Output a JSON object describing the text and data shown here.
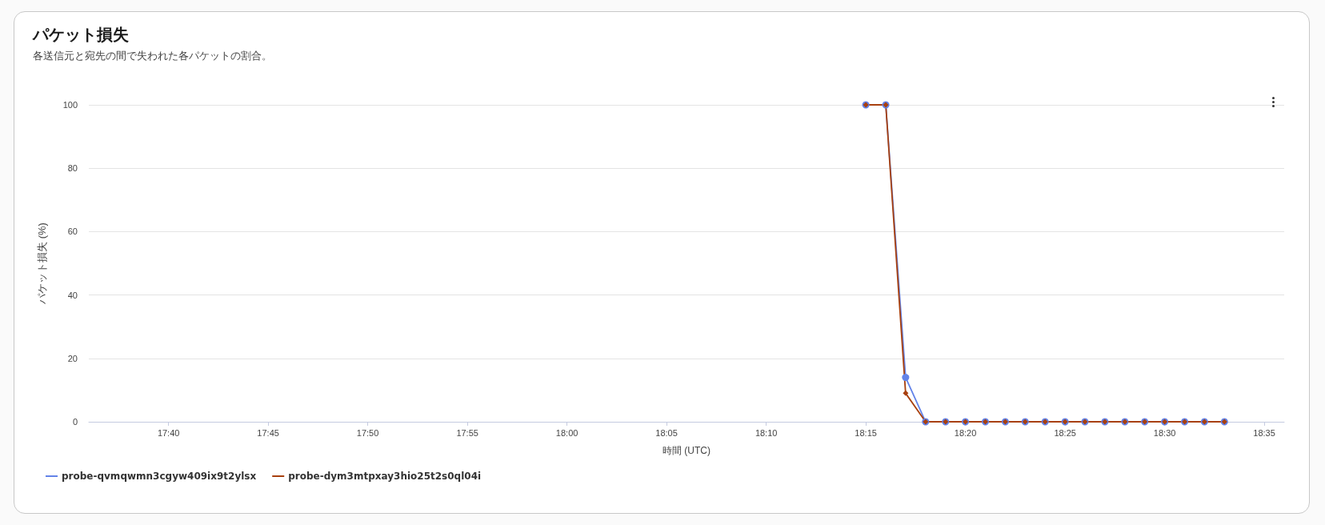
{
  "chart_data": {
    "type": "line",
    "title": "パケット損失",
    "subtitle": "各送信元と宛先の間で失われた各パケットの割合。",
    "xlabel": "時間 (UTC)",
    "ylabel": "パケット損失 (%)",
    "x": [
      18.25,
      18.2667,
      18.2833,
      18.3,
      18.3167,
      18.3333,
      18.35,
      18.3667,
      18.3833,
      18.4,
      18.4167,
      18.4333,
      18.45,
      18.4667,
      18.4833,
      18.5,
      18.5167,
      18.5333,
      18.55
    ],
    "series": [
      {
        "name": "probe-qvmqwmn3cgyw409ix9t2ylsx",
        "color": "#6383e8",
        "marker": "circle",
        "values": [
          100,
          100,
          14,
          0,
          0,
          0,
          0,
          0,
          0,
          0,
          0,
          0,
          0,
          0,
          0,
          0,
          0,
          0,
          0
        ]
      },
      {
        "name": "probe-dym3mtpxay3hio25t2s0ql04i",
        "color": "#a8400f",
        "marker": "diamond",
        "values": [
          100,
          100,
          9,
          0,
          0,
          0,
          0,
          0,
          0,
          0,
          0,
          0,
          0,
          0,
          0,
          0,
          0,
          0,
          0
        ]
      }
    ],
    "xlim": [
      17.6,
      18.6
    ],
    "xticks": [
      {
        "value": 17.6667,
        "label": "17:40"
      },
      {
        "value": 17.75,
        "label": "17:45"
      },
      {
        "value": 17.8333,
        "label": "17:50"
      },
      {
        "value": 17.9167,
        "label": "17:55"
      },
      {
        "value": 18,
        "label": "18:00"
      },
      {
        "value": 18.0833,
        "label": "18:05"
      },
      {
        "value": 18.1667,
        "label": "18:10"
      },
      {
        "value": 18.25,
        "label": "18:15"
      },
      {
        "value": 18.3333,
        "label": "18:20"
      },
      {
        "value": 18.4167,
        "label": "18:25"
      },
      {
        "value": 18.5,
        "label": "18:30"
      },
      {
        "value": 18.5833,
        "label": "18:35"
      }
    ],
    "ylim": [
      0,
      100
    ],
    "yticks": [
      0,
      20,
      40,
      60,
      80,
      100
    ],
    "grid": "y",
    "legend": "bottom left",
    "line_style": "solid"
  }
}
